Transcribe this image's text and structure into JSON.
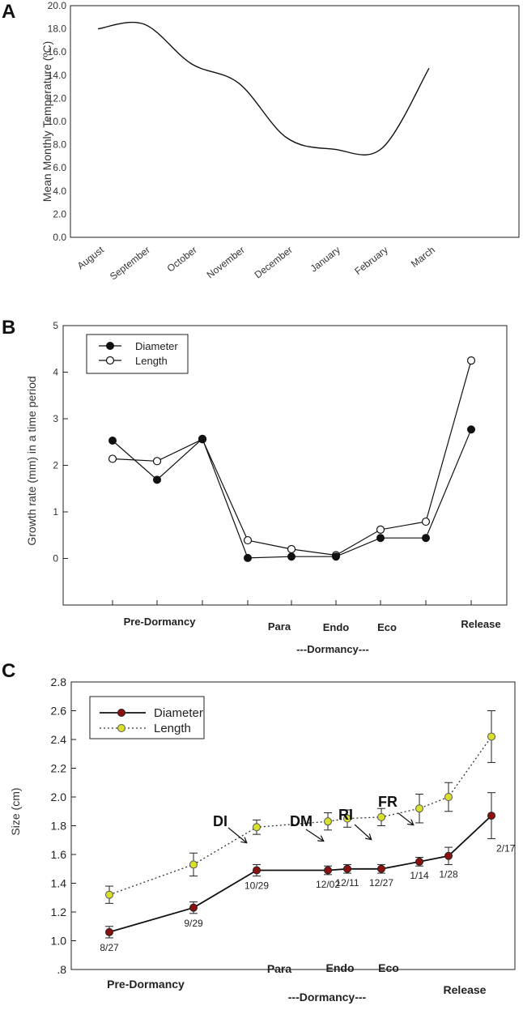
{
  "chart_data": [
    {
      "id": "A",
      "panel_label": "A",
      "type": "line",
      "title": "",
      "xlabel": "",
      "ylabel": "Mean Monthly Temperature (ºC)",
      "categories": [
        "August",
        "September",
        "October",
        "November",
        "December",
        "January",
        "February",
        "March"
      ],
      "series": [
        {
          "name": "Temperature",
          "values": [
            18.0,
            18.4,
            15.0,
            13.3,
            8.6,
            7.6,
            7.7,
            14.6
          ]
        }
      ],
      "ylim": [
        0,
        20
      ],
      "yticks": [
        "0.0",
        "2.0",
        "4.0",
        "6.0",
        "8.0",
        "10.0",
        "12.0",
        "14.0",
        "16.0",
        "18.0",
        "20.0"
      ],
      "grid": false
    },
    {
      "id": "B",
      "panel_label": "B",
      "type": "line",
      "title": "",
      "xlabel": "",
      "ylabel": "Growth rate (mm) in a time period",
      "ylim": [
        -1,
        5
      ],
      "yticks": [
        "0",
        "1",
        "2",
        "3",
        "4",
        "5"
      ],
      "legend": [
        "Diameter",
        "Length"
      ],
      "legend_position": "top-left",
      "series": [
        {
          "name": "Diameter",
          "marker": "filled-circle",
          "values": [
            2.53,
            1.69,
            2.57,
            0.01,
            0.04,
            0.04,
            0.44,
            0.44,
            2.77
          ]
        },
        {
          "name": "Length",
          "marker": "open-circle",
          "values": [
            2.14,
            2.09,
            2.56,
            0.39,
            0.2,
            0.07,
            0.62,
            0.79,
            4.25
          ]
        }
      ],
      "stage_labels": {
        "pre": "Pre-Dormancy",
        "para": "Para",
        "endo": "Endo",
        "eco": "Eco",
        "release": "Release",
        "dormancy": "---Dormancy---"
      }
    },
    {
      "id": "C",
      "panel_label": "C",
      "type": "line",
      "title": "",
      "xlabel": "",
      "ylabel": "Size (cm)",
      "ylim": [
        0.8,
        2.8
      ],
      "yticks": [
        ".8",
        "1.0",
        "1.2",
        "1.4",
        "1.6",
        "1.8",
        "2.0",
        "2.2",
        "2.4",
        "2.6",
        "2.8"
      ],
      "legend": [
        "Diameter",
        "Length"
      ],
      "legend_position": "top-left",
      "dates": [
        "8/27",
        "9/29",
        "10/29",
        "12/02",
        "12/11",
        "12/27",
        "1/14",
        "1/28",
        "2/17"
      ],
      "series": [
        {
          "name": "Diameter",
          "style": "solid",
          "color": "#8b1010",
          "values": [
            1.06,
            1.23,
            1.49,
            1.49,
            1.5,
            1.5,
            1.55,
            1.59,
            1.87
          ],
          "errors": [
            0.04,
            0.04,
            0.04,
            0.03,
            0.03,
            0.03,
            0.03,
            0.06,
            0.16
          ]
        },
        {
          "name": "Length",
          "style": "dotted",
          "color": "#d9e02c",
          "values": [
            1.32,
            1.53,
            1.79,
            1.83,
            1.85,
            1.86,
            1.92,
            2.0,
            2.42
          ],
          "errors": [
            0.06,
            0.08,
            0.05,
            0.06,
            0.06,
            0.06,
            0.1,
            0.1,
            0.18
          ]
        }
      ],
      "annotations": [
        "DI",
        "DM",
        "RI",
        "FR"
      ],
      "stage_labels": {
        "pre": "Pre-Dormancy",
        "para": "Para",
        "endo": "Endo",
        "eco": "Eco",
        "release": "Release",
        "dormancy": "---Dormancy---"
      }
    }
  ]
}
